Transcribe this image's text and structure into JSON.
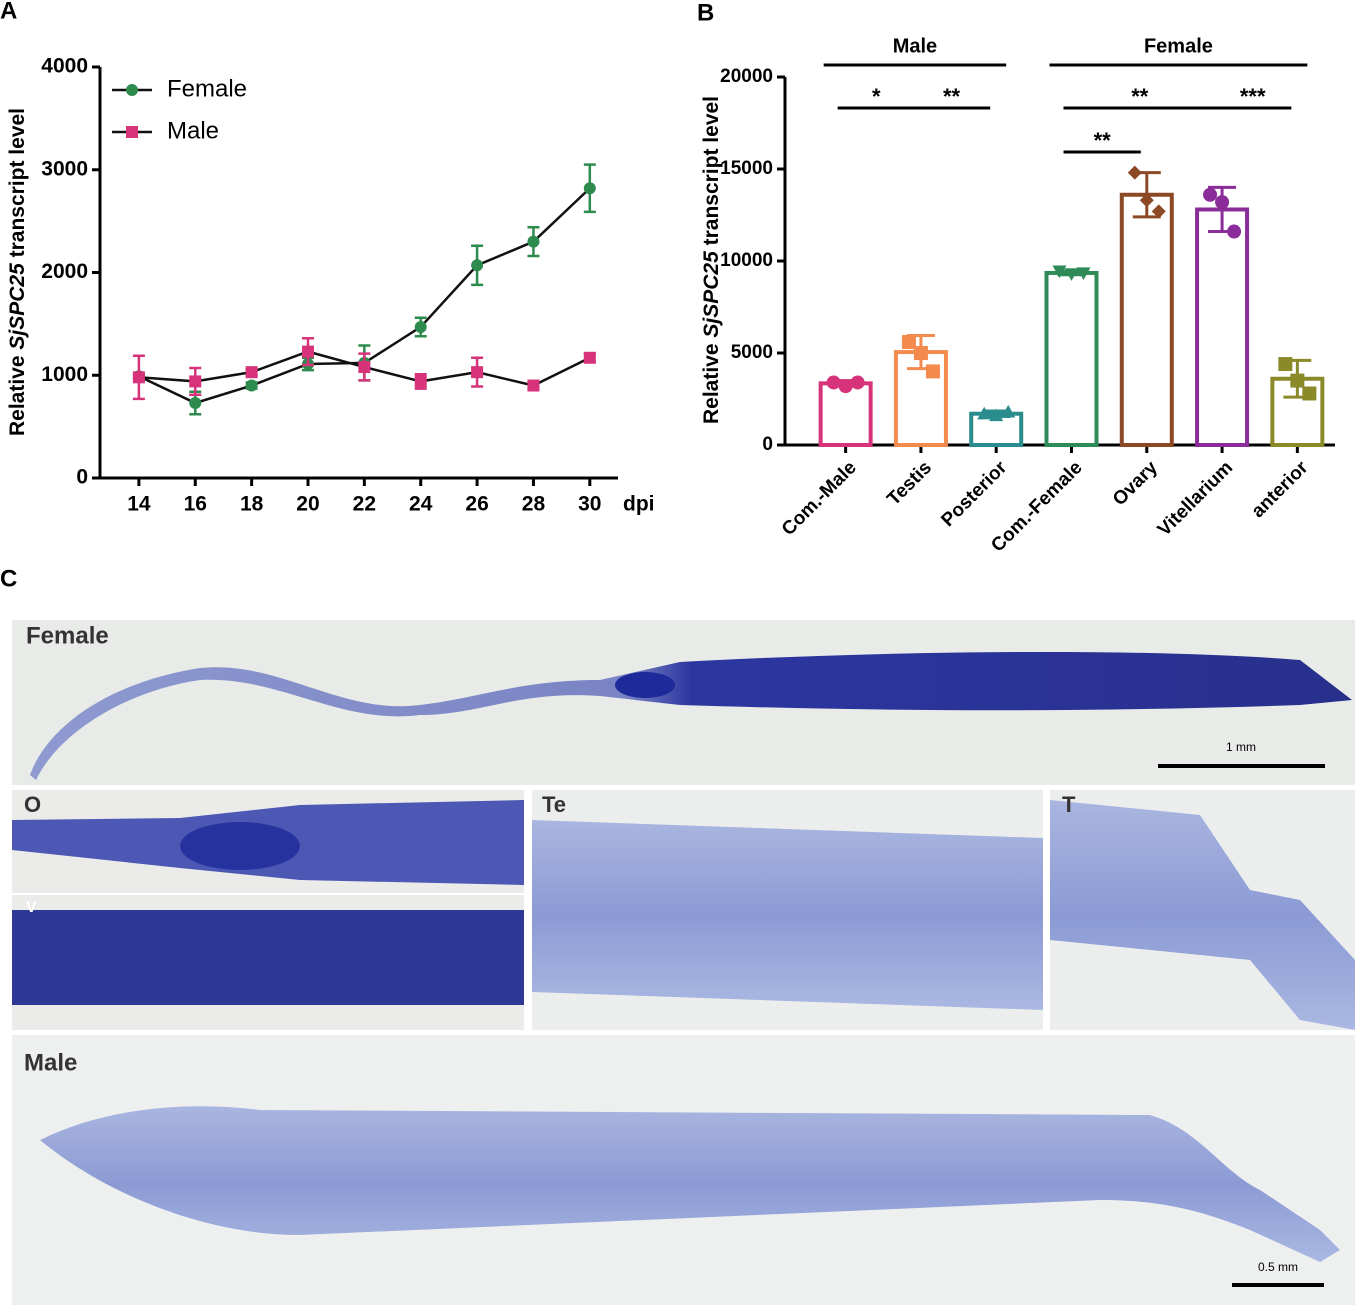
{
  "chart_data": [
    {
      "type": "line",
      "panel": "A",
      "x": [
        14,
        16,
        18,
        20,
        22,
        24,
        26,
        28,
        30
      ],
      "xlim": [
        12.62,
        31
      ],
      "xticks": [
        14,
        16,
        18,
        20,
        22,
        24,
        26,
        28,
        30
      ],
      "xlabel": "dpi",
      "ylabel": [
        "Relative ",
        "SjSPC25",
        " transcript level"
      ],
      "ylim": [
        0,
        4000
      ],
      "yticks": [
        0,
        1000,
        2000,
        3000,
        4000
      ],
      "legend": "upper left",
      "series": [
        {
          "name": "Female",
          "color": "#2e8b4e",
          "marker": "circle",
          "values": [
            990,
            730,
            900,
            1110,
            1120,
            1470,
            2070,
            2300,
            2820
          ],
          "errors": [
            20,
            110,
            30,
            60,
            170,
            90,
            190,
            140,
            230
          ]
        },
        {
          "name": "Male",
          "color": "#d6337a",
          "marker": "square",
          "values": [
            980,
            940,
            1030,
            1230,
            1080,
            940,
            1030,
            900,
            1170
          ],
          "errors": [
            210,
            130,
            30,
            130,
            130,
            70,
            140,
            30,
            40
          ]
        }
      ]
    },
    {
      "type": "bar",
      "panel": "B",
      "categories": [
        "Com.-Male",
        "Testis",
        "Posterior",
        "Com.-Female",
        "Ovary",
        "Vitellarium",
        "anterior"
      ],
      "values": [
        3350,
        5050,
        1700,
        9350,
        13600,
        12800,
        3600
      ],
      "errors": [
        150,
        900,
        150,
        100,
        1200,
        1200,
        1000
      ],
      "points": [
        [
          3400,
          3200,
          3400
        ],
        [
          5600,
          5000,
          4000
        ],
        [
          1700,
          1600,
          1800
        ],
        [
          9450,
          9300,
          9350
        ],
        [
          14800,
          13300,
          12700
        ],
        [
          13600,
          13200,
          11600
        ],
        [
          4400,
          3500,
          2800
        ]
      ],
      "colors": [
        "#d6337a",
        "#f58a4e",
        "#2a8c8c",
        "#2e8b57",
        "#8b4a25",
        "#8a2d9a",
        "#8a8a2a"
      ],
      "markers": [
        "circle",
        "square",
        "triangle",
        "triangle-down",
        "diamond",
        "circle",
        "square"
      ],
      "ylim": [
        0,
        20000
      ],
      "yticks": [
        0,
        5000,
        10000,
        15000,
        20000
      ],
      "ylabel": [
        "Relative ",
        "SjSPC25",
        " transcript level"
      ],
      "groups": [
        {
          "label": "Male",
          "span": [
            "Com.-Male",
            "Posterior"
          ]
        },
        {
          "label": "Female",
          "span": [
            "Com.-Female",
            "anterior"
          ]
        }
      ],
      "significance": [
        {
          "label": "*",
          "span": [
            "Com.-Male",
            "Testis"
          ]
        },
        {
          "label": "**",
          "span": [
            "Testis",
            "Posterior"
          ]
        },
        {
          "label": "**",
          "span": [
            "Com.-Female",
            "Vitellarium"
          ]
        },
        {
          "label": "***",
          "span": [
            "Vitellarium",
            "anterior"
          ]
        },
        {
          "label": "**",
          "span": [
            "Com.-Female",
            "Ovary"
          ]
        }
      ]
    }
  ],
  "images": {
    "panel": "C",
    "items": [
      {
        "label": "Female",
        "scale": "1 mm"
      },
      {
        "label": "O"
      },
      {
        "label": "V"
      },
      {
        "label": "Te"
      },
      {
        "label": "T"
      },
      {
        "label": "Male",
        "scale": "0.5 mm"
      }
    ]
  }
}
